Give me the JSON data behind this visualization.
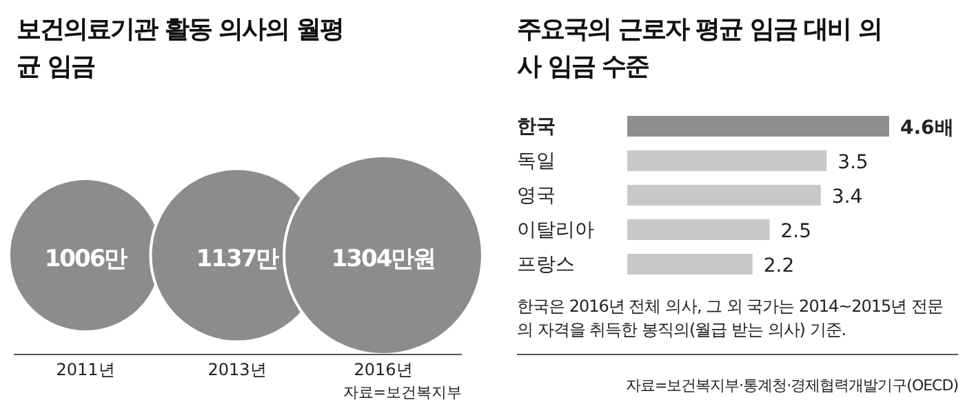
{
  "chart_data": [
    {
      "type": "other",
      "title": "보건의료기관 활동 의사의 월평균 임금",
      "categories": [
        "2011년",
        "2013년",
        "2016년"
      ],
      "values": [
        1006,
        1137,
        1304
      ],
      "value_labels": [
        "1006만",
        "1137만",
        "1304만원"
      ],
      "color": "#8c8c8c",
      "annotations": [
        "자료=보건복지부"
      ]
    },
    {
      "type": "bar",
      "orientation": "horizontal",
      "title": "주요국의 근로자 평균 임금 대비 의사 임금 수준",
      "categories": [
        "한국",
        "독일",
        "영국",
        "이탈리아",
        "프랑스"
      ],
      "values": [
        4.6,
        3.5,
        3.4,
        2.5,
        2.2
      ],
      "value_labels": [
        "4.6배",
        "3.5",
        "3.4",
        "2.5",
        "2.2"
      ],
      "colors": [
        "#8f8f8f",
        "#c8c8c8",
        "#c8c8c8",
        "#c8c8c8",
        "#c8c8c8"
      ],
      "annotations": [
        "한국은 2016년 전체 의사, 그 외 국가는 2014~2015년 전문의 자격을 취득한 봉직의(월급 받는 의사) 기준.",
        "자료=보건복지부·통계청·경제협력개발기구(OECD)"
      ]
    }
  ]
}
